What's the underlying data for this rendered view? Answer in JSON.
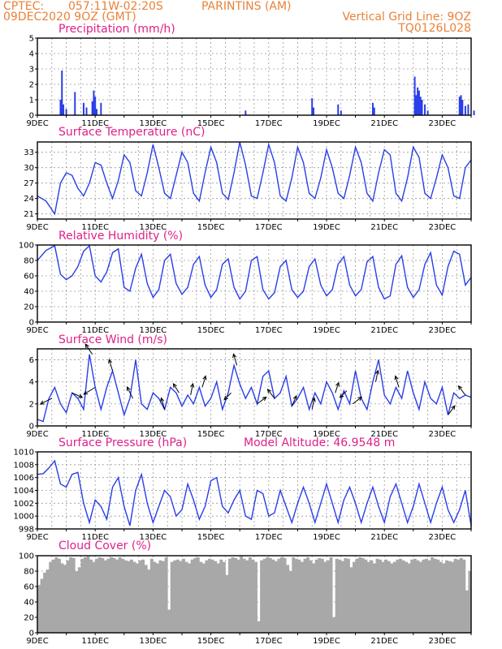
{
  "header": {
    "left_line1": "CPTEC:",
    "coords": "057:11W-02:20S",
    "station": "PARINTINS (AM)",
    "left_line2": "09DEC2020 9OZ (GMT)",
    "right_line1": "Vertical Grid Line: 9OZ",
    "right_line2": "TQ0126L028"
  },
  "colors": {
    "header": "#e8823a",
    "title": "#e0208a",
    "series": "#2a3ee8",
    "cloud": "#a8a8a8"
  },
  "x_tick_labels": [
    "9DEC",
    "11DEC",
    "13DEC",
    "15DEC",
    "17DEC",
    "19DEC",
    "21DEC",
    "23DEC"
  ],
  "panels": {
    "precip": {
      "title": "Precipitation (mm/h)"
    },
    "temp": {
      "title": "Surface Temperature (nC)"
    },
    "rh": {
      "title": "Relative Humidity (%)"
    },
    "wind": {
      "title": "Surface Wind (m/s)"
    },
    "pres": {
      "title": "Surface Pressure (hPa)",
      "extra": "Model Altitude: 46.9548 m"
    },
    "cloud": {
      "title": "Cloud Cover (%)"
    }
  },
  "chart_data": [
    {
      "type": "bar",
      "title": "Precipitation (mm/h)",
      "ylim": [
        0,
        5
      ],
      "yticks": [
        0,
        1,
        2,
        3,
        4,
        5
      ],
      "x": [
        0.8,
        0.85,
        0.9,
        1.0,
        1.3,
        1.6,
        1.7,
        1.9,
        1.95,
        2.0,
        2.05,
        2.2,
        7.2,
        9.5,
        9.55,
        10.4,
        10.5,
        11.6,
        11.65,
        13.05,
        13.1,
        13.15,
        13.2,
        13.25,
        13.3,
        13.4,
        13.5,
        14.6,
        14.65,
        14.7,
        14.8,
        14.9,
        15.1
      ],
      "values": [
        1.0,
        2.9,
        0.7,
        0.4,
        1.5,
        0.8,
        0.5,
        0.9,
        1.6,
        1.2,
        0.4,
        0.8,
        0.3,
        1.1,
        0.5,
        0.7,
        0.3,
        0.8,
        0.5,
        2.5,
        1.3,
        1.8,
        1.6,
        1.2,
        1.0,
        0.7,
        0.3,
        1.2,
        1.3,
        1.0,
        0.6,
        0.7,
        0.3
      ]
    },
    {
      "type": "line",
      "title": "Surface Temperature (nC)",
      "ylim": [
        20,
        35
      ],
      "yticks": [
        21,
        24,
        27,
        30,
        33
      ],
      "x": [
        0,
        0.3,
        0.6,
        0.8,
        1.0,
        1.2,
        1.4,
        1.6,
        1.8,
        2.0,
        2.2,
        2.4,
        2.6,
        2.8,
        3.0,
        3.2,
        3.4,
        3.6,
        3.8,
        4.0,
        4.2,
        4.4,
        4.6,
        4.8,
        5.0,
        5.2,
        5.4,
        5.6,
        5.8,
        6.0,
        6.2,
        6.4,
        6.6,
        6.8,
        7.0,
        7.2,
        7.4,
        7.6,
        7.8,
        8.0,
        8.2,
        8.4,
        8.6,
        8.8,
        9.0,
        9.2,
        9.4,
        9.6,
        9.8,
        10.0,
        10.2,
        10.4,
        10.6,
        10.8,
        11.0,
        11.2,
        11.4,
        11.6,
        11.8,
        12.0,
        12.2,
        12.4,
        12.6,
        12.8,
        13.0,
        13.2,
        13.4,
        13.6,
        13.8,
        14.0,
        14.2,
        14.4,
        14.6,
        14.8,
        15.0
      ],
      "values": [
        24.5,
        23.5,
        21.0,
        27.0,
        29.0,
        28.5,
        26.0,
        24.5,
        27.0,
        31.0,
        30.5,
        27.0,
        24.0,
        27.5,
        32.5,
        31.0,
        25.5,
        24.5,
        29.0,
        34.5,
        30.0,
        25.0,
        24.0,
        28.5,
        33.0,
        31.0,
        25.0,
        23.5,
        29.0,
        34.0,
        31.0,
        25.0,
        23.8,
        29.0,
        35.0,
        30.5,
        24.5,
        24.0,
        29.0,
        34.5,
        31.0,
        24.5,
        23.5,
        28.0,
        34.0,
        31.0,
        25.0,
        24.0,
        28.0,
        33.5,
        30.0,
        25.0,
        24.0,
        28.5,
        34.0,
        31.0,
        25.0,
        23.5,
        29.0,
        33.5,
        32.5,
        25.0,
        23.5,
        28.0,
        34.0,
        32.0,
        25.0,
        24.0,
        28.0,
        32.5,
        30.0,
        24.5,
        24.0,
        30.0,
        31.5
      ]
    },
    {
      "type": "line",
      "title": "Relative Humidity (%)",
      "ylim": [
        0,
        100
      ],
      "yticks": [
        0,
        20,
        40,
        60,
        80,
        100
      ],
      "x": [
        0,
        0.3,
        0.6,
        0.8,
        1.0,
        1.2,
        1.4,
        1.6,
        1.8,
        2.0,
        2.2,
        2.4,
        2.6,
        2.8,
        3.0,
        3.2,
        3.4,
        3.6,
        3.8,
        4.0,
        4.2,
        4.4,
        4.6,
        4.8,
        5.0,
        5.2,
        5.4,
        5.6,
        5.8,
        6.0,
        6.2,
        6.4,
        6.6,
        6.8,
        7.0,
        7.2,
        7.4,
        7.6,
        7.8,
        8.0,
        8.2,
        8.4,
        8.6,
        8.8,
        9.0,
        9.2,
        9.4,
        9.6,
        9.8,
        10.0,
        10.2,
        10.4,
        10.6,
        10.8,
        11.0,
        11.2,
        11.4,
        11.6,
        11.8,
        12.0,
        12.2,
        12.4,
        12.6,
        12.8,
        13.0,
        13.2,
        13.4,
        13.6,
        13.8,
        14.0,
        14.2,
        14.4,
        14.6,
        14.8,
        15.0
      ],
      "values": [
        80,
        93,
        99,
        62,
        55,
        60,
        72,
        92,
        99,
        60,
        52,
        65,
        90,
        95,
        45,
        40,
        70,
        88,
        50,
        32,
        42,
        80,
        88,
        50,
        36,
        45,
        75,
        85,
        48,
        32,
        42,
        75,
        82,
        45,
        30,
        40,
        80,
        85,
        42,
        30,
        38,
        72,
        80,
        42,
        32,
        40,
        72,
        82,
        48,
        34,
        42,
        75,
        85,
        48,
        34,
        42,
        78,
        85,
        45,
        30,
        34,
        75,
        86,
        45,
        32,
        42,
        75,
        90,
        48,
        35,
        72,
        92,
        88,
        48,
        58
      ]
    },
    {
      "type": "line",
      "title": "Surface Wind (m/s)",
      "ylim": [
        0,
        7
      ],
      "yticks": [
        0,
        2,
        4,
        6
      ],
      "x": [
        0,
        0.2,
        0.4,
        0.6,
        0.8,
        1.0,
        1.2,
        1.4,
        1.6,
        1.8,
        2.0,
        2.2,
        2.4,
        2.6,
        2.8,
        3.0,
        3.2,
        3.4,
        3.6,
        3.8,
        4.0,
        4.2,
        4.4,
        4.6,
        4.8,
        5.0,
        5.2,
        5.4,
        5.6,
        5.8,
        6.0,
        6.2,
        6.4,
        6.6,
        6.8,
        7.0,
        7.2,
        7.4,
        7.6,
        7.8,
        8.0,
        8.2,
        8.4,
        8.6,
        8.8,
        9.0,
        9.2,
        9.4,
        9.6,
        9.8,
        10.0,
        10.2,
        10.4,
        10.6,
        10.8,
        11.0,
        11.2,
        11.4,
        11.6,
        11.8,
        12.0,
        12.2,
        12.4,
        12.6,
        12.8,
        13.0,
        13.2,
        13.4,
        13.6,
        13.8,
        14.0,
        14.2,
        14.4,
        14.6,
        14.8,
        15.0
      ],
      "values": [
        0.6,
        0.4,
        2.5,
        3.5,
        2.0,
        1.2,
        3.0,
        2.5,
        1.5,
        6.5,
        3.5,
        1.5,
        3.5,
        5.0,
        3.0,
        1.0,
        2.5,
        6.0,
        2.0,
        1.5,
        3.0,
        2.5,
        1.5,
        3.5,
        3.0,
        1.8,
        2.8,
        2.0,
        3.5,
        1.8,
        2.5,
        4.0,
        1.5,
        3.0,
        5.5,
        3.8,
        2.5,
        3.5,
        2.0,
        4.5,
        5.0,
        2.5,
        3.0,
        4.5,
        1.8,
        2.5,
        3.5,
        1.5,
        3.0,
        2.0,
        4.0,
        3.0,
        1.5,
        3.2,
        2.0,
        5.0,
        2.5,
        1.5,
        4.0,
        6.0,
        2.8,
        2.0,
        3.5,
        2.5,
        5.0,
        3.0,
        1.5,
        4.0,
        2.5,
        2.0,
        3.5,
        1.0,
        3.0,
        2.5,
        2.8,
        2.6
      ]
    },
    {
      "type": "line",
      "title": "Surface Pressure (hPa)",
      "ylim": [
        998,
        1010
      ],
      "yticks": [
        998,
        1000,
        1002,
        1004,
        1006,
        1008,
        1010
      ],
      "x": [
        0,
        0.2,
        0.4,
        0.6,
        0.8,
        1.0,
        1.2,
        1.4,
        1.6,
        1.8,
        2.0,
        2.2,
        2.4,
        2.6,
        2.8,
        3.0,
        3.2,
        3.4,
        3.6,
        3.8,
        4.0,
        4.2,
        4.4,
        4.6,
        4.8,
        5.0,
        5.2,
        5.4,
        5.6,
        5.8,
        6.0,
        6.2,
        6.4,
        6.6,
        6.8,
        7.0,
        7.2,
        7.4,
        7.6,
        7.8,
        8.0,
        8.2,
        8.4,
        8.6,
        8.8,
        9.0,
        9.2,
        9.4,
        9.6,
        9.8,
        10.0,
        10.2,
        10.4,
        10.6,
        10.8,
        11.0,
        11.2,
        11.4,
        11.6,
        11.8,
        12.0,
        12.2,
        12.4,
        12.6,
        12.8,
        13.0,
        13.2,
        13.4,
        13.6,
        13.8,
        14.0,
        14.2,
        14.4,
        14.6,
        14.8,
        15.0
      ],
      "values": [
        1006.5,
        1006.6,
        1007.5,
        1008.6,
        1005.0,
        1004.5,
        1006.5,
        1006.8,
        1002.0,
        999.0,
        1002.5,
        1001.5,
        999.5,
        1004.5,
        1006.0,
        1001.5,
        998.5,
        1004.0,
        1006.5,
        1002.0,
        999.0,
        1001.5,
        1004.0,
        1003.0,
        1000.0,
        1001.0,
        1005.0,
        1002.5,
        999.5,
        1001.5,
        1005.5,
        1006.0,
        1001.5,
        1000.5,
        1002.5,
        1004.0,
        1000.0,
        999.5,
        1004.0,
        1003.5,
        1000.0,
        1000.5,
        1004.0,
        1001.5,
        999.0,
        1002.0,
        1004.5,
        1002.0,
        999.0,
        1002.0,
        1005.0,
        1002.0,
        999.0,
        1002.5,
        1004.5,
        1002.0,
        999.0,
        1002.0,
        1004.5,
        1001.5,
        999.0,
        1003.0,
        1005.0,
        1002.0,
        999.0,
        1001.5,
        1005.0,
        1002.0,
        999.0,
        1002.0,
        1004.5,
        1001.0,
        999.0,
        1001.0,
        1004.0,
        998.5
      ]
    },
    {
      "type": "bar",
      "title": "Cloud Cover (%)",
      "ylim": [
        0,
        100
      ],
      "yticks": [
        0,
        20,
        40,
        60,
        80,
        100
      ],
      "x": [
        0.0,
        0.1,
        0.2,
        0.3,
        0.4,
        0.5,
        0.6,
        0.7,
        0.8,
        0.9,
        1.0,
        1.1,
        1.2,
        1.3,
        1.4,
        1.5,
        1.6,
        1.7,
        1.8,
        1.9,
        2.0,
        2.1,
        2.2,
        2.3,
        2.4,
        2.5,
        2.6,
        2.7,
        2.8,
        2.9,
        3.0,
        3.1,
        3.2,
        3.3,
        3.4,
        3.5,
        3.6,
        3.7,
        3.8,
        3.9,
        4.0,
        4.1,
        4.2,
        4.3,
        4.4,
        4.5,
        4.6,
        4.7,
        4.8,
        4.9,
        5.0,
        5.1,
        5.2,
        5.3,
        5.4,
        5.5,
        5.6,
        5.7,
        5.8,
        5.9,
        6.0,
        6.1,
        6.2,
        6.3,
        6.4,
        6.5,
        6.6,
        6.7,
        6.8,
        6.9,
        7.0,
        7.1,
        7.2,
        7.3,
        7.4,
        7.5,
        7.6,
        7.7,
        7.8,
        7.9,
        8.0,
        8.1,
        8.2,
        8.3,
        8.4,
        8.5,
        8.6,
        8.7,
        8.8,
        8.9,
        9.0,
        9.1,
        9.2,
        9.3,
        9.4,
        9.5,
        9.6,
        9.7,
        9.8,
        9.9,
        10.0,
        10.1,
        10.2,
        10.3,
        10.4,
        10.5,
        10.6,
        10.7,
        10.8,
        10.9,
        11.0,
        11.1,
        11.2,
        11.3,
        11.4,
        11.5,
        11.6,
        11.7,
        11.8,
        11.9,
        12.0,
        12.1,
        12.2,
        12.3,
        12.4,
        12.5,
        12.6,
        12.7,
        12.8,
        12.9,
        13.0,
        13.1,
        13.2,
        13.3,
        13.4,
        13.5,
        13.6,
        13.7,
        13.8,
        13.9,
        14.0,
        14.1,
        14.2,
        14.3,
        14.4,
        14.5,
        14.6,
        14.7,
        14.8,
        14.9
      ],
      "values": [
        62,
        70,
        78,
        82,
        92,
        95,
        98,
        96,
        90,
        88,
        94,
        98,
        97,
        80,
        85,
        96,
        98,
        99,
        95,
        92,
        96,
        98,
        97,
        94,
        96,
        98,
        97,
        95,
        98,
        96,
        94,
        93,
        95,
        92,
        90,
        94,
        95,
        88,
        82,
        96,
        92,
        90,
        94,
        93,
        98,
        30,
        92,
        94,
        95,
        93,
        96,
        92,
        90,
        95,
        97,
        98,
        92,
        90,
        94,
        96,
        95,
        93,
        90,
        95,
        92,
        75,
        96,
        98,
        97,
        95,
        99,
        96,
        94,
        98,
        95,
        92,
        15,
        94,
        96,
        98,
        97,
        95,
        93,
        96,
        98,
        97,
        88,
        80,
        98,
        96,
        95,
        92,
        96,
        98,
        94,
        90,
        95,
        97,
        96,
        92,
        94,
        98,
        20,
        96,
        95,
        93,
        97,
        96,
        85,
        92,
        96,
        98,
        97,
        95,
        92,
        94,
        90,
        96,
        95,
        92,
        95,
        93,
        90,
        92,
        95,
        96,
        94,
        92,
        90,
        95,
        96,
        94,
        92,
        95,
        96,
        94,
        98,
        96,
        95,
        92,
        90,
        94,
        93,
        92,
        96,
        95,
        97,
        95,
        55,
        80
      ]
    }
  ],
  "wind_arrows": [
    {
      "x": 0.5,
      "dx": -1.0,
      "dy": -0.5
    },
    {
      "x": 1.2,
      "dx": 0.9,
      "dy": -0.4
    },
    {
      "x": 1.9,
      "dx": -0.6,
      "dy": 0.9
    },
    {
      "x": 2.0,
      "dx": -1.0,
      "dy": -0.6
    },
    {
      "x": 2.6,
      "dx": -0.3,
      "dy": 1.0
    },
    {
      "x": 3.3,
      "dx": -0.5,
      "dy": 1.0
    },
    {
      "x": 4.4,
      "dx": -0.3,
      "dy": 1.0
    },
    {
      "x": 4.9,
      "dx": -0.5,
      "dy": 0.8
    },
    {
      "x": 5.3,
      "dx": 0.2,
      "dy": 1.0
    },
    {
      "x": 5.7,
      "dx": 0.3,
      "dy": 1.0
    },
    {
      "x": 6.7,
      "dx": -0.6,
      "dy": -0.6
    },
    {
      "x": 6.9,
      "dx": -0.3,
      "dy": 1.0
    },
    {
      "x": 7.6,
      "dx": 0.8,
      "dy": 0.6
    },
    {
      "x": 8.2,
      "dx": -0.6,
      "dy": 0.8
    },
    {
      "x": 8.8,
      "dx": 0.4,
      "dy": 0.9
    },
    {
      "x": 9.5,
      "dx": 0.2,
      "dy": 1.0
    },
    {
      "x": 10.3,
      "dx": 0.3,
      "dy": 0.9
    },
    {
      "x": 10.7,
      "dx": -0.6,
      "dy": -0.6
    },
    {
      "x": 10.9,
      "dx": 0.8,
      "dy": 0.6
    },
    {
      "x": 11.7,
      "dx": 0.2,
      "dy": 1.0
    },
    {
      "x": 12.5,
      "dx": -0.3,
      "dy": 1.0
    },
    {
      "x": 14.2,
      "dx": 0.6,
      "dy": 0.8
    },
    {
      "x": 14.8,
      "dx": -0.6,
      "dy": 0.8
    }
  ]
}
